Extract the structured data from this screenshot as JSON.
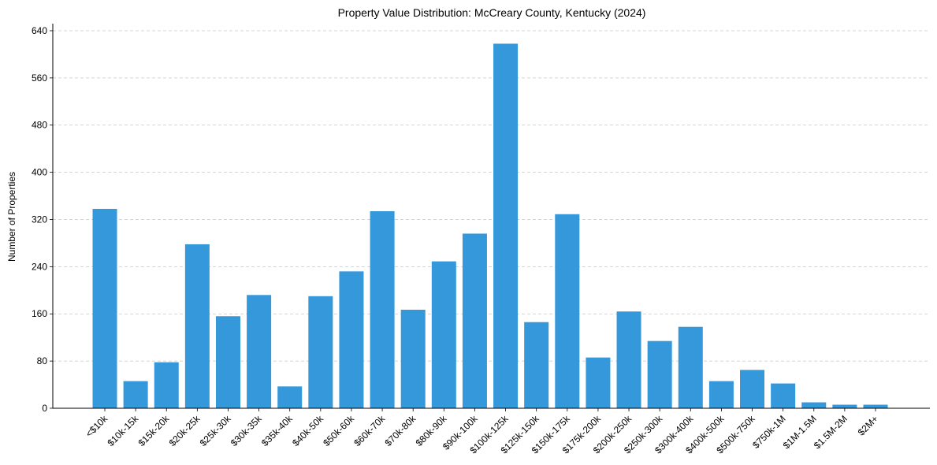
{
  "chart_data": {
    "type": "bar",
    "title": "Property Value Distribution: McCreary County, Kentucky (2024)",
    "xlabel": "",
    "ylabel": "Number of Properties",
    "categories": [
      "<$10k",
      "$10k-15k",
      "$15k-20k",
      "$20k-25k",
      "$25k-30k",
      "$30k-35k",
      "$35k-40k",
      "$40k-50k",
      "$50k-60k",
      "$60k-70k",
      "$70k-80k",
      "$80k-90k",
      "$90k-100k",
      "$100k-125k",
      "$125k-150k",
      "$150k-175k",
      "$175k-200k",
      "$200k-250k",
      "$250k-300k",
      "$300k-400k",
      "$400k-500k",
      "$500k-750k",
      "$750k-1M",
      "$1M-1.5M",
      "$1.5M-2M",
      "$2M+"
    ],
    "values": [
      338,
      46,
      78,
      278,
      156,
      192,
      37,
      190,
      232,
      334,
      167,
      249,
      296,
      618,
      146,
      329,
      86,
      164,
      114,
      138,
      46,
      65,
      42,
      10,
      6,
      6
    ],
    "yticks": [
      0,
      80,
      160,
      240,
      320,
      400,
      480,
      560,
      640
    ],
    "ylim": [
      0,
      652
    ],
    "grid": true,
    "bar_color": "#3498db"
  }
}
